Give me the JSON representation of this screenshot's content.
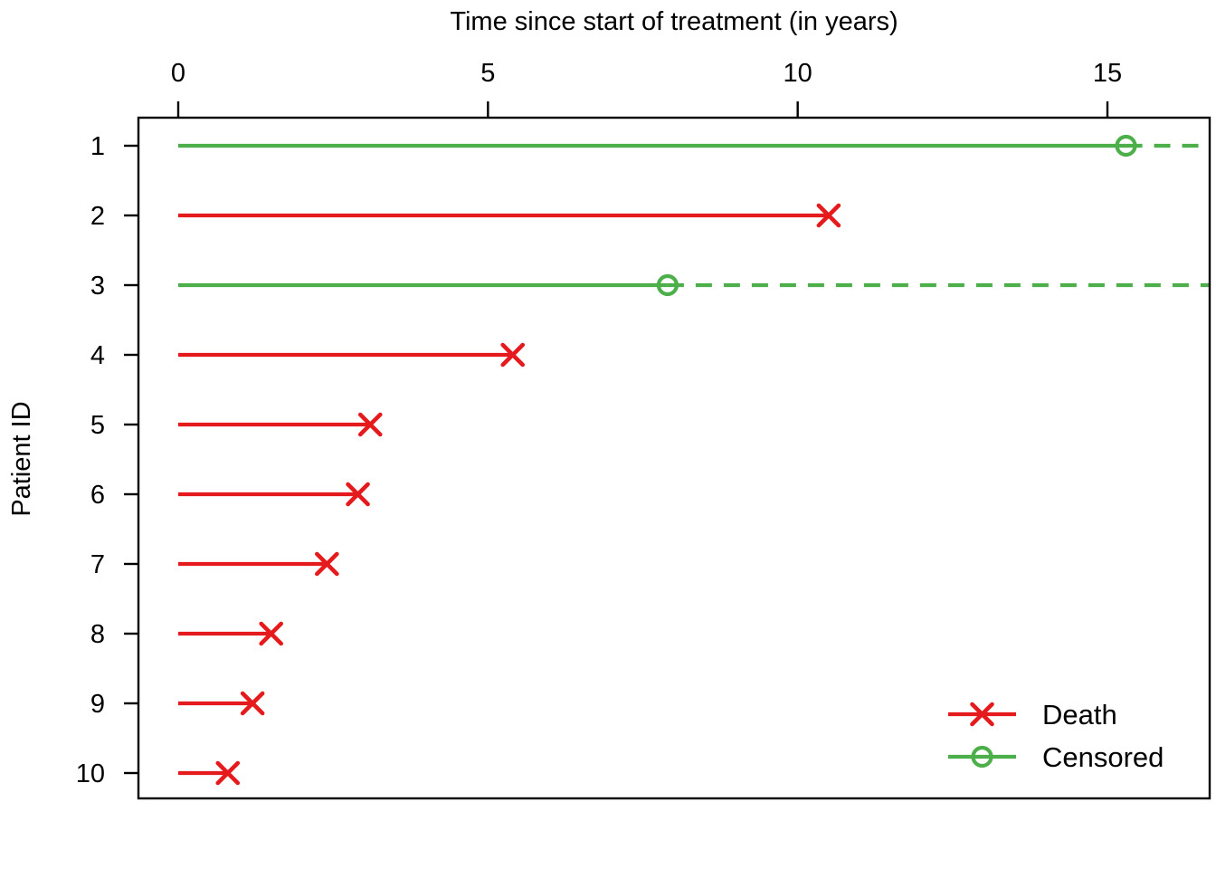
{
  "chart_data": {
    "type": "line",
    "title": "Time since start of treatment (in years)",
    "xlabel": "Time since start of treatment (in years)",
    "ylabel": "Patient ID",
    "x_axis_position": "top",
    "x_ticks": [
      0,
      5,
      10,
      15
    ],
    "xlim": [
      0,
      16.65
    ],
    "grid": "off",
    "series": [
      {
        "patient_id": "1",
        "time_years": 15.3,
        "event": "censored"
      },
      {
        "patient_id": "2",
        "time_years": 10.5,
        "event": "death"
      },
      {
        "patient_id": "3",
        "time_years": 7.9,
        "event": "censored"
      },
      {
        "patient_id": "4",
        "time_years": 5.4,
        "event": "death"
      },
      {
        "patient_id": "5",
        "time_years": 3.1,
        "event": "death"
      },
      {
        "patient_id": "6",
        "time_years": 2.9,
        "event": "death"
      },
      {
        "patient_id": "7",
        "time_years": 2.4,
        "event": "death"
      },
      {
        "patient_id": "8",
        "time_years": 1.5,
        "event": "death"
      },
      {
        "patient_id": "9",
        "time_years": 1.2,
        "event": "death"
      },
      {
        "patient_id": "10",
        "time_years": 0.8,
        "event": "death"
      }
    ],
    "legend": {
      "position": "bottom-right",
      "items": [
        {
          "label": "Death",
          "marker": "x-marker",
          "color": "#e41a1c",
          "line": "solid"
        },
        {
          "label": "Censored",
          "marker": "open-circle-marker",
          "color": "#4daf4a",
          "line": "solid"
        }
      ]
    },
    "colors": {
      "death": "#e41a1c",
      "censored": "#4daf4a",
      "axis": "#000000"
    },
    "censored_style": "dashed extension from marker to right plot edge"
  }
}
